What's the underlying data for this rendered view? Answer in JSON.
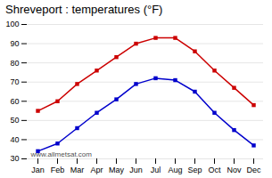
{
  "chart_data": {
    "type": "line",
    "title": "Shreveport : temperatures (°F)",
    "categories": [
      "Jan",
      "Feb",
      "Mar",
      "Apr",
      "May",
      "Jun",
      "Jul",
      "Aug",
      "Sep",
      "Oct",
      "Nov",
      "Dec"
    ],
    "series": [
      {
        "color": "#cc0000",
        "marker": "square",
        "line_style": "solid",
        "values": [
          55,
          60,
          69,
          76,
          83,
          90,
          93,
          93,
          86,
          76,
          67,
          58
        ]
      },
      {
        "color": "#0000cc",
        "marker": "square",
        "line_style": "solid",
        "values": [
          34,
          38,
          46,
          54,
          61,
          69,
          72,
          71,
          65,
          54,
          45,
          37
        ]
      }
    ],
    "ylim": [
      30,
      100
    ],
    "yticks": [
      30,
      40,
      50,
      60,
      70,
      80,
      90,
      100
    ],
    "grid": true,
    "annotation": "www.allmetsat.com"
  }
}
